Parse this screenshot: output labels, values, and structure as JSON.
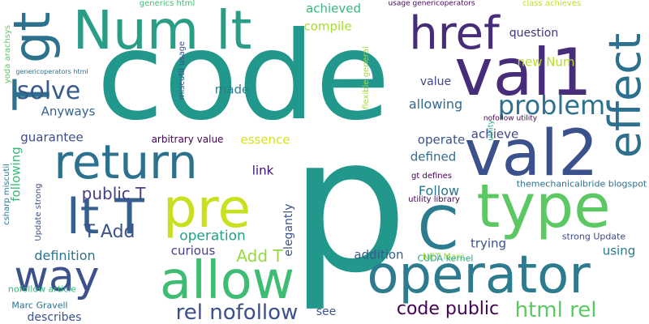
{
  "colors": {
    "background": "#ffffff",
    "palette": [
      "#440154",
      "#472c7a",
      "#3b518b",
      "#2c718e",
      "#21908d",
      "#27ad81",
      "#5cc863",
      "#aadc32",
      "#fde725"
    ]
  },
  "words": [
    {
      "text": "code",
      "color": "#21988b",
      "vertical": false
    },
    {
      "text": "p",
      "color": "#21988b",
      "vertical": false
    },
    {
      "text": "operator",
      "color": "#2c7b8e",
      "vertical": false
    },
    {
      "text": "allow",
      "color": "#3fbc73",
      "vertical": false
    },
    {
      "text": "val1",
      "color": "#472c7a",
      "vertical": false
    },
    {
      "text": "val2",
      "color": "#3b518b",
      "vertical": false
    },
    {
      "text": "type",
      "color": "#5cc863",
      "vertical": false
    },
    {
      "text": "return",
      "color": "#2c718e",
      "vertical": false
    },
    {
      "text": "pre",
      "color": "#c8e020",
      "vertical": false
    },
    {
      "text": "Num lt",
      "color": "#2a9d87",
      "vertical": false
    },
    {
      "text": "lt T",
      "color": "#34608d",
      "vertical": false
    },
    {
      "text": "T gt",
      "color": "#2c718e",
      "vertical": true
    },
    {
      "text": "href",
      "color": "#472c7a",
      "vertical": false
    },
    {
      "text": "effect",
      "color": "#2d708e",
      "vertical": true
    },
    {
      "text": "C",
      "color": "#2c7b8e",
      "vertical": false
    },
    {
      "text": "way",
      "color": "#3b528b",
      "vertical": false
    },
    {
      "text": "problem",
      "color": "#2d718e",
      "vertical": false
    },
    {
      "text": "solve",
      "color": "#365c8d",
      "vertical": false
    },
    {
      "text": "rel nofollow",
      "color": "#3b518b",
      "vertical": false
    },
    {
      "text": "html rel",
      "color": "#5cc863",
      "vertical": false
    },
    {
      "text": "code public",
      "color": "#440154",
      "vertical": false
    },
    {
      "text": "T Add",
      "color": "#3b528b",
      "vertical": false
    },
    {
      "text": "public T",
      "color": "#433e85",
      "vertical": false
    },
    {
      "text": "Add T",
      "color": "#95d840",
      "vertical": false
    },
    {
      "text": "operation",
      "color": "#20a386",
      "vertical": false
    },
    {
      "text": "definition",
      "color": "#2c728e",
      "vertical": false
    },
    {
      "text": "curious",
      "color": "#433e85",
      "vertical": false
    },
    {
      "text": "trying",
      "color": "#3b528b",
      "vertical": false
    },
    {
      "text": "using",
      "color": "#29798e",
      "vertical": false
    },
    {
      "text": "addition",
      "color": "#365c8d",
      "vertical": false
    },
    {
      "text": "Follow",
      "color": "#2c738e",
      "vertical": false
    },
    {
      "text": "defined",
      "color": "#2f6c8e",
      "vertical": false
    },
    {
      "text": "operate",
      "color": "#3b528b",
      "vertical": false
    },
    {
      "text": "achieve",
      "color": "#414487",
      "vertical": false
    },
    {
      "text": "allowing",
      "color": "#31688e",
      "vertical": false
    },
    {
      "text": "question",
      "color": "#46337e",
      "vertical": false
    },
    {
      "text": "value",
      "color": "#3e4989",
      "vertical": false
    },
    {
      "text": "new Num",
      "color": "#b5de2b",
      "vertical": false
    },
    {
      "text": "compile",
      "color": "#a8db34",
      "vertical": false
    },
    {
      "text": "achieved",
      "color": "#35b779",
      "vertical": false
    },
    {
      "text": "made",
      "color": "#287c8e",
      "vertical": false
    },
    {
      "text": "Anyways",
      "color": "#33638d",
      "vertical": false
    },
    {
      "text": "guarantee",
      "color": "#3e4a89",
      "vertical": false
    },
    {
      "text": "following",
      "color": "#37b878",
      "vertical": true
    },
    {
      "text": "essence",
      "color": "#d8e219",
      "vertical": false
    },
    {
      "text": "link",
      "color": "#3b0f70",
      "vertical": false
    },
    {
      "text": "elegantly",
      "color": "#3b528b",
      "vertical": true
    },
    {
      "text": "arbitrary value",
      "color": "#440154",
      "vertical": false
    },
    {
      "text": "see",
      "color": "#3b528b",
      "vertical": false
    },
    {
      "text": "describes",
      "color": "#3b528b",
      "vertical": false
    },
    {
      "text": "Marc Gravell",
      "color": "#2c728e",
      "vertical": false
    },
    {
      "text": "nofollow article",
      "color": "#35b779",
      "vertical": false
    },
    {
      "text": "NET Marc",
      "color": "#9fda3a",
      "vertical": false
    },
    {
      "text": "CUDA kernel",
      "color": "#21a685",
      "vertical": false
    },
    {
      "text": "strong Update",
      "color": "#3e4989",
      "vertical": false
    },
    {
      "text": "themechanicalbride blogspot",
      "color": "#2c738e",
      "vertical": false
    },
    {
      "text": "utility library",
      "color": "#440154",
      "vertical": false
    },
    {
      "text": "gt defines",
      "color": "#440154",
      "vertical": false
    },
    {
      "text": "nofollow utility",
      "color": "#440154",
      "vertical": false
    },
    {
      "text": "generics html",
      "color": "#3fbc73",
      "vertical": false
    },
    {
      "text": "usage genericoperators",
      "color": "#440154",
      "vertical": false
    },
    {
      "text": "class achieves",
      "color": "#bddf26",
      "vertical": false
    },
    {
      "text": "genericoperators html",
      "color": "#2c738e",
      "vertical": false
    },
    {
      "text": "miscutil usage",
      "color": "#3b528b",
      "vertical": true
    },
    {
      "text": "flexible general",
      "color": "#aadc32",
      "vertical": true
    },
    {
      "text": "yoda arachsys",
      "color": "#5ec962",
      "vertical": true
    },
    {
      "text": "csharp miscutil",
      "color": "#2a788e",
      "vertical": true
    },
    {
      "text": "Update strong",
      "color": "#3b528b",
      "vertical": true
    },
    {
      "text": "utility",
      "color": "#20a386",
      "vertical": true
    }
  ]
}
